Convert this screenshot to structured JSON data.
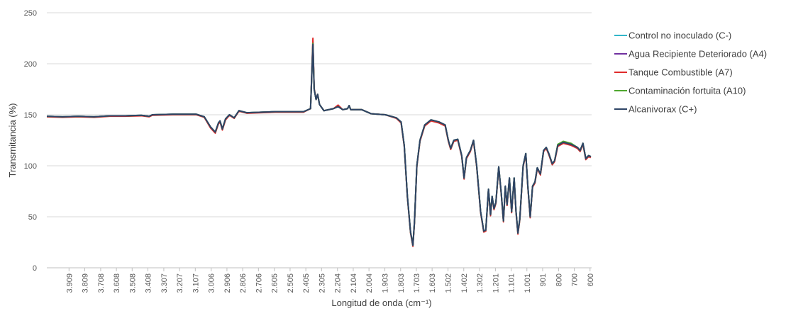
{
  "chart_data": {
    "type": "line",
    "x_label": "Longitud de onda (cm⁻¹)",
    "y_label": "Transmitancia (%)",
    "xlim": [
      4050,
      590
    ],
    "ylim": [
      0,
      250
    ],
    "yticks": [
      0,
      50,
      100,
      150,
      200,
      250
    ],
    "xticks": [
      {
        "value": 3909,
        "label": "3.909"
      },
      {
        "value": 3809,
        "label": "3.809"
      },
      {
        "value": 3708,
        "label": "3.708"
      },
      {
        "value": 3608,
        "label": "3.608"
      },
      {
        "value": 3508,
        "label": "3.508"
      },
      {
        "value": 3408,
        "label": "3.408"
      },
      {
        "value": 3307,
        "label": "3.307"
      },
      {
        "value": 3207,
        "label": "3.207"
      },
      {
        "value": 3107,
        "label": "3.107"
      },
      {
        "value": 3006,
        "label": "3.006"
      },
      {
        "value": 2906,
        "label": "2.906"
      },
      {
        "value": 2806,
        "label": "2.806"
      },
      {
        "value": 2706,
        "label": "2.706"
      },
      {
        "value": 2605,
        "label": "2.605"
      },
      {
        "value": 2505,
        "label": "2.505"
      },
      {
        "value": 2405,
        "label": "2.405"
      },
      {
        "value": 2305,
        "label": "2.305"
      },
      {
        "value": 2204,
        "label": "2.204"
      },
      {
        "value": 2104,
        "label": "2.104"
      },
      {
        "value": 2004,
        "label": "2.004"
      },
      {
        "value": 1903,
        "label": "1.903"
      },
      {
        "value": 1803,
        "label": "1.803"
      },
      {
        "value": 1703,
        "label": "1.703"
      },
      {
        "value": 1603,
        "label": "1.603"
      },
      {
        "value": 1502,
        "label": "1.502"
      },
      {
        "value": 1402,
        "label": "1.402"
      },
      {
        "value": 1302,
        "label": "1.302"
      },
      {
        "value": 1201,
        "label": "1.201"
      },
      {
        "value": 1101,
        "label": "1.101"
      },
      {
        "value": 1001,
        "label": "1.001"
      },
      901,
      800,
      700,
      600
    ],
    "grid": true,
    "legend": "right",
    "x": [
      4050,
      3950,
      3850,
      3750,
      3650,
      3550,
      3450,
      3400,
      3380,
      3250,
      3100,
      3050,
      3010,
      2980,
      2960,
      2950,
      2935,
      2915,
      2890,
      2860,
      2830,
      2780,
      2600,
      2420,
      2375,
      2360,
      2352,
      2340,
      2330,
      2318,
      2290,
      2230,
      2200,
      2170,
      2140,
      2130,
      2120,
      2050,
      1990,
      1900,
      1830,
      1800,
      1780,
      1760,
      1740,
      1725,
      1715,
      1700,
      1680,
      1650,
      1610,
      1560,
      1520,
      1500,
      1485,
      1465,
      1440,
      1415,
      1400,
      1385,
      1360,
      1340,
      1320,
      1295,
      1275,
      1262,
      1245,
      1232,
      1222,
      1210,
      1198,
      1180,
      1165,
      1150,
      1138,
      1127,
      1112,
      1098,
      1082,
      1070,
      1058,
      1046,
      1025,
      1008,
      995,
      980,
      965,
      950,
      935,
      915,
      895,
      878,
      862,
      840,
      825,
      805,
      770,
      720,
      680,
      663,
      645,
      627,
      609,
      595
    ],
    "series": [
      {
        "name": "Control no inoculado (C-)",
        "color": "#31b6c9",
        "values": [
          148.5,
          148,
          148.5,
          148,
          149,
          149,
          149.5,
          148.5,
          150,
          150.5,
          150.5,
          148,
          138,
          133,
          142,
          144,
          136,
          146,
          150,
          147,
          154,
          152,
          153,
          153,
          156,
          222,
          175,
          165,
          170,
          160,
          154,
          156,
          158,
          155,
          156,
          159,
          155,
          155,
          151,
          150,
          147,
          143,
          120,
          70,
          35,
          22,
          45,
          100,
          125,
          140,
          145,
          143,
          140,
          125,
          117,
          125,
          126,
          110,
          88,
          108,
          115,
          125,
          100,
          55,
          36,
          37,
          77,
          52,
          70,
          58,
          64,
          99,
          75,
          46,
          80,
          62,
          88,
          55,
          88,
          55,
          34,
          48,
          100,
          112,
          80,
          50,
          80,
          84,
          98,
          92,
          115,
          118,
          112,
          102,
          105,
          120,
          123,
          121,
          118,
          115,
          122,
          107,
          110,
          109
        ]
      },
      {
        "name": "Agua Recipiente Deteriorado (A4)",
        "color": "#7030a0",
        "values": [
          148.5,
          148,
          148.5,
          148,
          149,
          149,
          149.5,
          148.5,
          150,
          150.5,
          150.5,
          148,
          138,
          133,
          142,
          144,
          136,
          146,
          150,
          147,
          154,
          152,
          153,
          153,
          156,
          221,
          175,
          165,
          170,
          160,
          154,
          156,
          158,
          155,
          156,
          159,
          155,
          155,
          151,
          150,
          147,
          143,
          120,
          70,
          35,
          22,
          45,
          100,
          125,
          140,
          145,
          143,
          140,
          125,
          117,
          125,
          126,
          110,
          88,
          108,
          115,
          125,
          100,
          55,
          36,
          37,
          77,
          52,
          70,
          58,
          64,
          99,
          75,
          46,
          80,
          62,
          88,
          55,
          88,
          55,
          34,
          48,
          100,
          112,
          80,
          50,
          80,
          84,
          98,
          92,
          115,
          118,
          112,
          102,
          105,
          120,
          123,
          121,
          118,
          115,
          122,
          107,
          110,
          109
        ]
      },
      {
        "name": "Tanque Combustible (A7)",
        "color": "#e02b2b",
        "values": [
          148,
          147.5,
          148,
          147.5,
          148.5,
          148.5,
          149,
          148,
          149.5,
          150,
          150,
          147.5,
          137,
          132,
          141,
          143,
          135,
          145,
          149.5,
          146.5,
          153.5,
          151.5,
          152.5,
          152.5,
          156,
          225,
          176,
          165,
          170,
          160,
          154,
          156,
          159.5,
          155,
          156,
          159,
          155,
          155,
          151,
          150,
          146.5,
          142,
          119,
          69,
          34,
          21,
          44,
          99,
          124,
          139,
          144,
          142,
          139,
          124,
          116,
          124,
          125,
          109,
          87,
          107,
          114,
          124,
          99,
          54,
          35,
          36,
          76,
          51,
          69,
          57,
          63,
          98,
          74,
          45,
          79,
          61,
          87,
          54,
          87,
          54,
          33,
          47,
          99,
          111,
          79,
          49,
          79,
          83,
          97,
          91,
          114,
          117,
          111,
          101,
          104,
          119,
          122,
          120,
          117,
          114,
          121,
          106,
          109,
          108
        ]
      },
      {
        "name": "Contaminación fortuita (A10)",
        "color": "#4ea72e",
        "values": [
          148.5,
          148,
          148.5,
          148,
          149,
          149,
          149.5,
          148.5,
          150,
          150.5,
          150.5,
          148,
          138,
          133,
          142,
          144,
          136,
          146,
          150,
          147,
          154,
          152,
          153,
          153,
          156,
          220,
          175,
          165,
          170,
          160,
          154,
          156,
          158,
          155,
          156,
          159,
          155,
          155,
          151,
          150,
          147,
          143,
          120,
          70,
          35,
          22,
          45,
          100,
          125,
          140,
          145,
          143,
          140,
          125,
          117,
          125,
          126,
          110,
          88,
          108,
          115,
          125,
          100,
          55,
          36,
          37,
          77,
          52,
          70,
          58,
          64,
          99,
          75,
          46,
          80,
          62,
          88,
          55,
          88,
          55,
          34,
          48,
          100,
          112,
          80,
          50,
          80,
          84,
          98,
          92,
          115,
          118,
          112,
          102,
          105,
          121,
          124,
          122,
          118,
          115,
          122,
          107,
          110,
          109
        ]
      },
      {
        "name": "Alcanivorax (C+)",
        "color": "#2e4466",
        "values": [
          148.5,
          148,
          148.5,
          148,
          149,
          149,
          149.5,
          148.5,
          150,
          150.5,
          150.5,
          148,
          138,
          133,
          142,
          144,
          136,
          146,
          150,
          147,
          154,
          152,
          153,
          153,
          156,
          219,
          175,
          165,
          170,
          160,
          154,
          156,
          158,
          155,
          156,
          159,
          155,
          155,
          151,
          150,
          147,
          143,
          120,
          70,
          35,
          22,
          45,
          100,
          125,
          140,
          145,
          143,
          140,
          125,
          117,
          125,
          126,
          110,
          88,
          108,
          115,
          125,
          100,
          55,
          36,
          37,
          77,
          52,
          70,
          58,
          64,
          99,
          75,
          46,
          80,
          62,
          88,
          55,
          88,
          55,
          34,
          48,
          100,
          112,
          80,
          50,
          80,
          84,
          98,
          92,
          115,
          118,
          112,
          102,
          105,
          120,
          123,
          121,
          118,
          115,
          122,
          107,
          110,
          109
        ]
      }
    ]
  }
}
